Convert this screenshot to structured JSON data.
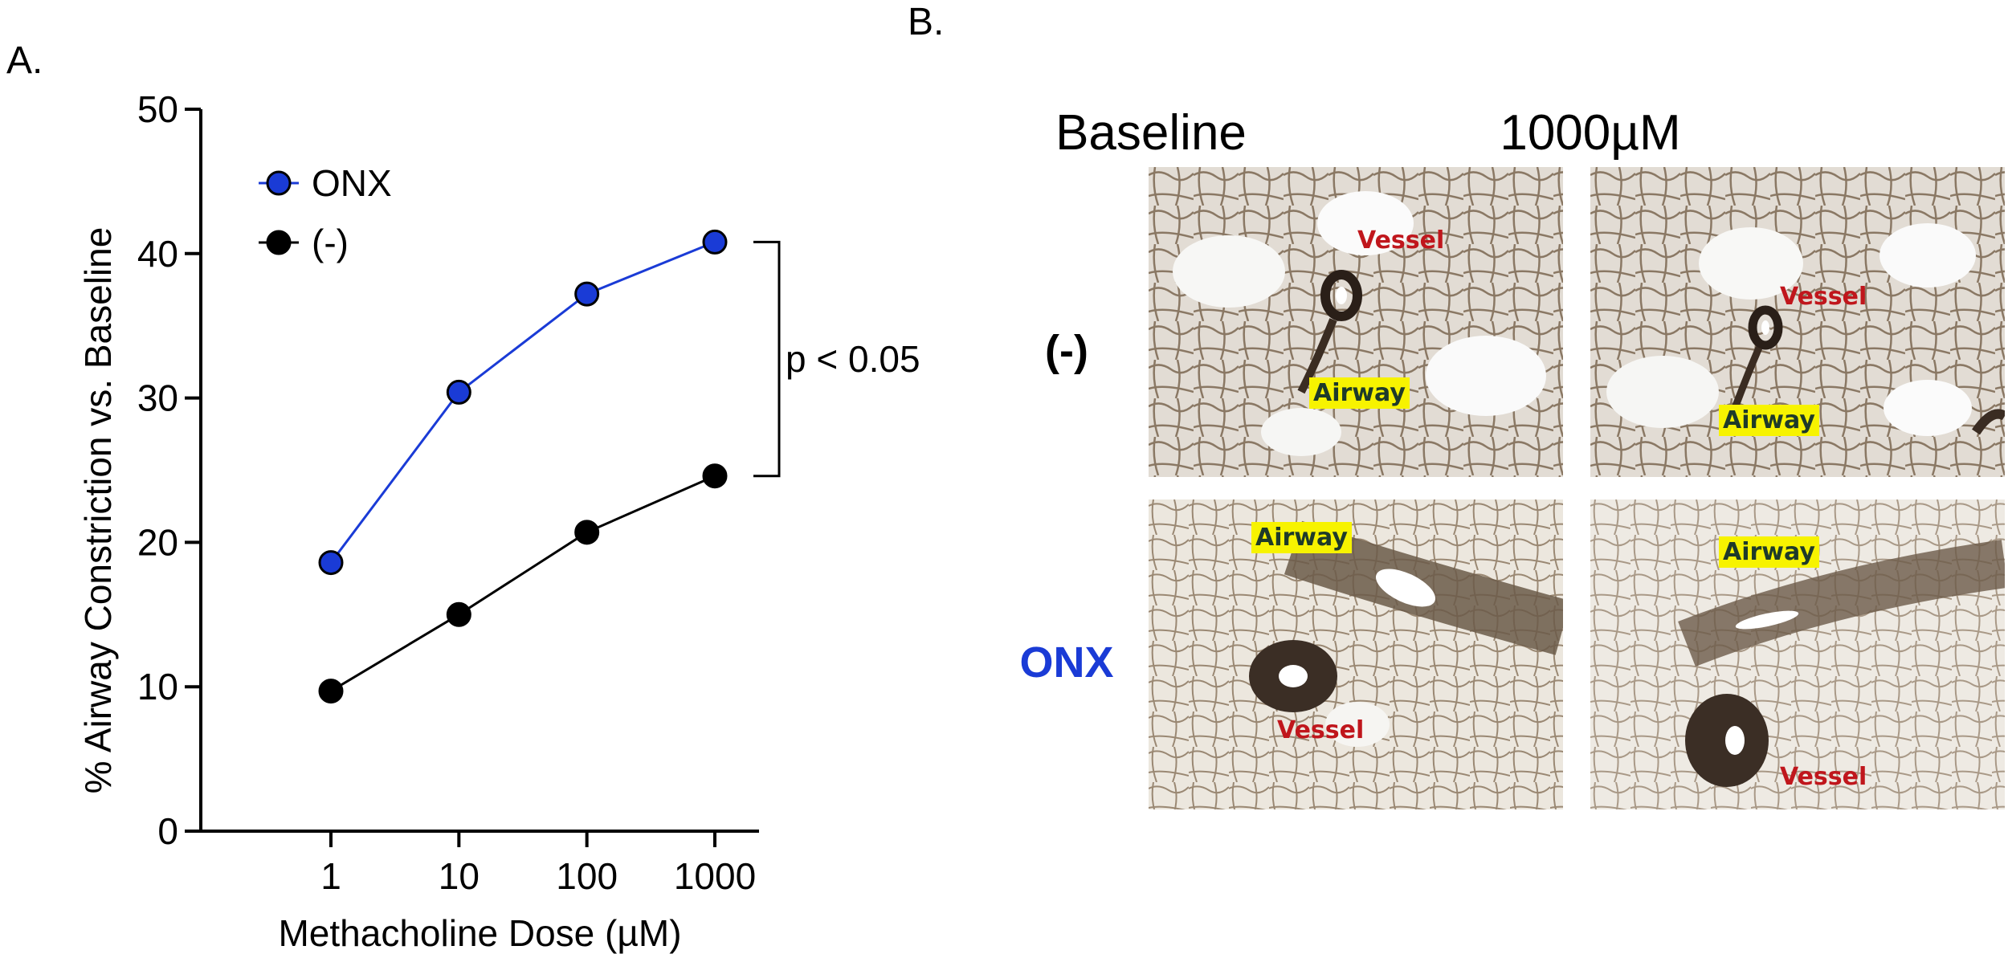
{
  "panel_a_label": "A.",
  "panel_b_label": "B.",
  "chart_data": {
    "type": "line",
    "xscale": "log",
    "x": [
      1,
      10,
      100,
      1000
    ],
    "x_tick_labels": [
      "1",
      "10",
      "100",
      "1000"
    ],
    "xlabel": "Methacholine Dose (µM)",
    "ylabel": "% Airway Constriction vs. Baseline",
    "ylim": [
      0,
      50
    ],
    "y_ticks": [
      0,
      10,
      20,
      30,
      40,
      50
    ],
    "grid": false,
    "legend_position": "top-left",
    "series": [
      {
        "name": "ONX",
        "color": "#1a3bd6",
        "values": [
          18.6,
          30.4,
          37.2,
          40.8
        ]
      },
      {
        "name": "(-)",
        "color": "#000000",
        "values": [
          9.7,
          15.0,
          20.7,
          24.6
        ]
      }
    ],
    "annotation": {
      "text": "p < 0.05",
      "between": [
        40.8,
        24.6
      ]
    }
  },
  "panel_b": {
    "columns": [
      "Baseline",
      "1000µM"
    ],
    "rows": [
      {
        "label": "(-)",
        "color": "#000000"
      },
      {
        "label": "ONX",
        "color": "#1a3bd6"
      }
    ],
    "vessel_label": "Vessel",
    "airway_label": "Airway"
  }
}
